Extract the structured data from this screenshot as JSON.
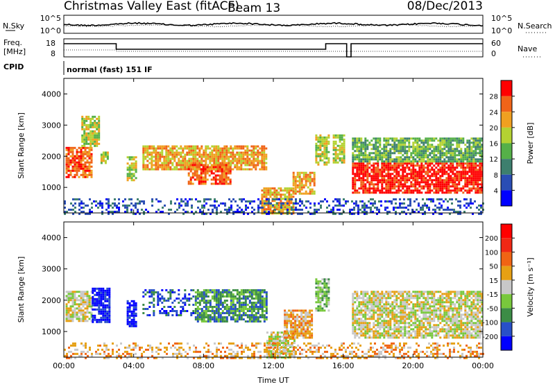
{
  "header": {
    "title": "Christmas Valley East (fitACF)",
    "beam": "Beam 13",
    "date": "08/Dec/2013"
  },
  "strip1": {
    "left_label": "N.Sky",
    "right_label": "N.Search",
    "ticks_left": [
      "10^5",
      "10^0"
    ],
    "ticks_right": [
      "10^5",
      "10^0"
    ]
  },
  "strip2": {
    "left_label_1": "Freq.",
    "left_label_2": "[MHz]",
    "right_label": "Nave",
    "ticks_left": [
      "18",
      "8"
    ],
    "ticks_right": [
      "60",
      "0"
    ]
  },
  "cpid": {
    "label": "CPID",
    "value": "normal (fast) 151 IF"
  },
  "chart_data": [
    {
      "type": "heatmap",
      "name": "power",
      "ylabel": "Slant Range [km]",
      "yticks": [
        "1000",
        "2000",
        "3000",
        "4000"
      ],
      "xticks": [
        "00:00",
        "04:00",
        "08:00",
        "12:00",
        "16:00",
        "20:00",
        "00:00"
      ],
      "x_range_hours": [
        0,
        24
      ],
      "y_range_km": [
        180,
        4500
      ],
      "colorbar": {
        "label": "Power [dB]",
        "ticks": [
          "4",
          "8",
          "12",
          "16",
          "20",
          "24",
          "28"
        ],
        "colors": [
          "#0000ff",
          "#2a4db4",
          "#3d7f6e",
          "#55b048",
          "#b4d232",
          "#f0a020",
          "#f06418",
          "#ff0000"
        ]
      },
      "regions": [
        {
          "t0": 0.1,
          "t1": 1.6,
          "r0": 1350,
          "r1": 2300,
          "level": 6
        },
        {
          "t0": 1.0,
          "t1": 2.0,
          "r0": 2300,
          "r1": 3300,
          "level": 4
        },
        {
          "t0": 2.1,
          "t1": 2.5,
          "r0": 1750,
          "r1": 2150,
          "level": 4
        },
        {
          "t0": 3.6,
          "t1": 4.1,
          "r0": 1200,
          "r1": 2000,
          "level": 4
        },
        {
          "t0": 4.5,
          "t1": 11.6,
          "r0": 1550,
          "r1": 2350,
          "level": 5
        },
        {
          "t0": 7.1,
          "t1": 9.5,
          "r0": 1100,
          "r1": 1750,
          "level": 6
        },
        {
          "t0": 11.3,
          "t1": 13.2,
          "r0": 180,
          "r1": 1000,
          "level": 5
        },
        {
          "t0": 13.1,
          "t1": 14.4,
          "r0": 800,
          "r1": 1500,
          "level": 5
        },
        {
          "t0": 14.4,
          "t1": 15.2,
          "r0": 1700,
          "r1": 2700,
          "level": 4
        },
        {
          "t0": 15.4,
          "t1": 16.1,
          "r0": 1800,
          "r1": 2700,
          "level": 4
        },
        {
          "t0": 16.5,
          "t1": 23.9,
          "r0": 800,
          "r1": 1800,
          "level": 7
        },
        {
          "t0": 16.5,
          "t1": 23.9,
          "r0": 1800,
          "r1": 2600,
          "level": 3
        },
        {
          "t0": 0.0,
          "t1": 24.0,
          "r0": 180,
          "r1": 650,
          "level": 1
        }
      ]
    },
    {
      "type": "heatmap",
      "name": "velocity",
      "ylabel": "Slant Range [km]",
      "yticks": [
        "1000",
        "2000",
        "3000",
        "4000"
      ],
      "xticks": [
        "00:00",
        "04:00",
        "08:00",
        "12:00",
        "16:00",
        "20:00",
        "00:00"
      ],
      "xlabel": "Time UT",
      "x_range_hours": [
        0,
        24
      ],
      "y_range_km": [
        180,
        4500
      ],
      "colorbar": {
        "label": "Velocity [m s⁻¹]",
        "ticks": [
          "200",
          "100",
          "50",
          "15",
          "-15",
          "-50",
          "-100",
          "-200"
        ],
        "colors": [
          "#0000ff",
          "#2850c8",
          "#3c8c46",
          "#78c83c",
          "#c8c8c8",
          "#e6a014",
          "#f06414",
          "#f02814",
          "#ff0000"
        ]
      },
      "regions": [
        {
          "t0": 0.1,
          "t1": 1.6,
          "r0": 1350,
          "r1": 2300,
          "level": 4
        },
        {
          "t0": 1.6,
          "t1": 2.6,
          "r0": 1300,
          "r1": 2400,
          "level": 0
        },
        {
          "t0": 3.6,
          "t1": 4.1,
          "r0": 1200,
          "r1": 2000,
          "level": 0
        },
        {
          "t0": 4.5,
          "t1": 7.5,
          "r0": 1550,
          "r1": 2350,
          "level": 1
        },
        {
          "t0": 7.5,
          "t1": 11.6,
          "r0": 1300,
          "r1": 2350,
          "level": 2
        },
        {
          "t0": 11.6,
          "t1": 13.2,
          "r0": 180,
          "r1": 1000,
          "level": 4
        },
        {
          "t0": 12.6,
          "t1": 14.2,
          "r0": 800,
          "r1": 1700,
          "level": 5
        },
        {
          "t0": 14.4,
          "t1": 15.2,
          "r0": 1700,
          "r1": 2700,
          "level": 3
        },
        {
          "t0": 16.5,
          "t1": 23.9,
          "r0": 800,
          "r1": 2300,
          "level": 4
        },
        {
          "t0": 0.0,
          "t1": 24.0,
          "r0": 180,
          "r1": 650,
          "level": 5
        }
      ]
    }
  ]
}
